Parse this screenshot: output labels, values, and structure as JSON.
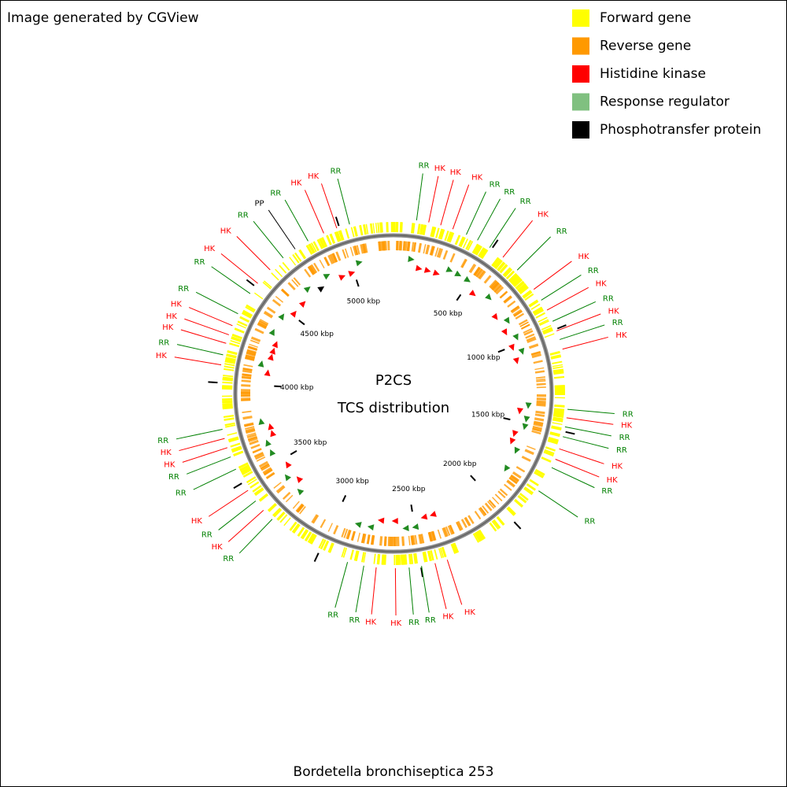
{
  "header": {
    "title": "Image generated by CGView"
  },
  "legend": [
    {
      "label": "Forward gene",
      "color": "#ffff00"
    },
    {
      "label": "Reverse gene",
      "color": "#ff9900"
    },
    {
      "label": "Histidine kinase",
      "color": "#ff0000"
    },
    {
      "label": "Response regulator",
      "color": "#80c080"
    },
    {
      "label": "Phosphotransfer protein",
      "color": "#000000"
    }
  ],
  "center": {
    "line1": "P2CS",
    "line2": "TCS distribution"
  },
  "footer": {
    "organism": "Bordetella bronchiseptica 253"
  },
  "map": {
    "xlim": [
      0,
      5264
    ],
    "ticks": [
      {
        "value": 500,
        "label": "500 kbp"
      },
      {
        "value": 1000,
        "label": "1000 kbp"
      },
      {
        "value": 1500,
        "label": "1500 kbp"
      },
      {
        "value": 2000,
        "label": "2000 kbp"
      },
      {
        "value": 2500,
        "label": "2500 kbp"
      },
      {
        "value": 3000,
        "label": "3000 kbp"
      },
      {
        "value": 3500,
        "label": "3500 kbp"
      },
      {
        "value": 4000,
        "label": "4000 kbp"
      },
      {
        "value": 4500,
        "label": "4500 kbp"
      },
      {
        "value": 5000,
        "label": "5000 kbp"
      }
    ],
    "type_colors": {
      "HK": "#ff0000",
      "RR": "#008000",
      "PP": "#000000"
    },
    "features": [
      {
        "label": "RR",
        "position": 111
      },
      {
        "label": "HK",
        "position": 170
      },
      {
        "label": "HK",
        "position": 229
      },
      {
        "label": "HK",
        "position": 290
      },
      {
        "label": "RR",
        "position": 360
      },
      {
        "label": "RR",
        "position": 420
      },
      {
        "label": "RR",
        "position": 488
      },
      {
        "label": "HK",
        "position": 567
      },
      {
        "label": "RR",
        "position": 659
      },
      {
        "label": "HK",
        "position": 781
      },
      {
        "label": "RR",
        "position": 844
      },
      {
        "label": "HK",
        "position": 899
      },
      {
        "label": "RR",
        "position": 959
      },
      {
        "label": "HK",
        "position": 1009
      },
      {
        "label": "RR",
        "position": 1053
      },
      {
        "label": "HK",
        "position": 1101
      },
      {
        "label": "RR",
        "position": 1392
      },
      {
        "label": "HK",
        "position": 1433
      },
      {
        "label": "RR",
        "position": 1477
      },
      {
        "label": "RR",
        "position": 1525
      },
      {
        "label": "HK",
        "position": 1586
      },
      {
        "label": "HK",
        "position": 1639
      },
      {
        "label": "RR",
        "position": 1683
      },
      {
        "label": "RR",
        "position": 1811
      },
      {
        "label": "HK",
        "position": 2370
      },
      {
        "label": "HK",
        "position": 2431
      },
      {
        "label": "RR",
        "position": 2497
      },
      {
        "label": "RR",
        "position": 2557
      },
      {
        "label": "HK",
        "position": 2623
      },
      {
        "label": "HK",
        "position": 2715
      },
      {
        "label": "RR",
        "position": 2775
      },
      {
        "label": "RR",
        "position": 2855
      },
      {
        "label": "RR",
        "position": 3275
      },
      {
        "label": "HK",
        "position": 3335
      },
      {
        "label": "RR",
        "position": 3393
      },
      {
        "label": "HK",
        "position": 3456
      },
      {
        "label": "RR",
        "position": 3573
      },
      {
        "label": "RR",
        "position": 3637
      },
      {
        "label": "HK",
        "position": 3684
      },
      {
        "label": "HK",
        "position": 3730
      },
      {
        "label": "RR",
        "position": 3775
      },
      {
        "label": "HK",
        "position": 4086
      },
      {
        "label": "RR",
        "position": 4135
      },
      {
        "label": "HK",
        "position": 4192
      },
      {
        "label": "HK",
        "position": 4235
      },
      {
        "label": "HK",
        "position": 4282
      },
      {
        "label": "RR",
        "position": 4345
      },
      {
        "label": "RR",
        "position": 4458
      },
      {
        "label": "HK",
        "position": 4519
      },
      {
        "label": "HK",
        "position": 4607
      },
      {
        "label": "RR",
        "position": 4692
      },
      {
        "label": "PP",
        "position": 4763
      },
      {
        "label": "RR",
        "position": 4836
      },
      {
        "label": "HK",
        "position": 4920
      },
      {
        "label": "HK",
        "position": 4987
      },
      {
        "label": "RR",
        "position": 5051
      }
    ]
  }
}
